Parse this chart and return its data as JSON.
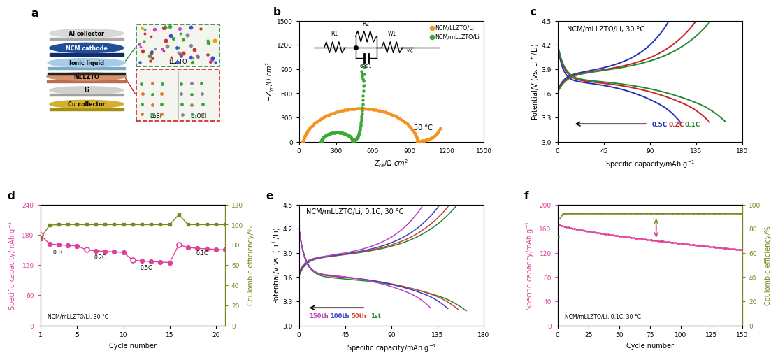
{
  "bg_color": "#ffffff",
  "panel_label_fontsize": 11,
  "axis_label_fontsize": 7,
  "tick_fontsize": 6.5,
  "title_fontsize": 7,
  "panel_b": {
    "xlim": [
      0,
      1500
    ],
    "ylim": [
      0,
      1500
    ],
    "xticks": [
      0,
      300,
      600,
      900,
      1200,
      1500
    ],
    "yticks": [
      0,
      300,
      600,
      900,
      1200,
      1500
    ],
    "orange_color": "#f5921e",
    "green_color": "#3aaa35",
    "label1": "NCM/LLZTO/Li",
    "label2": "NCM/mLLZTO/Li"
  },
  "panel_c": {
    "title": "NCM/mLLZTO/Li, 30 °C",
    "xlim": [
      0,
      180
    ],
    "ylim": [
      3.0,
      4.5
    ],
    "xticks": [
      0,
      45,
      90,
      135,
      180
    ],
    "yticks": [
      3.0,
      3.3,
      3.6,
      3.9,
      4.2,
      4.5
    ],
    "colors_05C": "#2233bb",
    "colors_02C": "#cc2222",
    "colors_01C": "#228833"
  },
  "panel_d": {
    "xlim": [
      1,
      21
    ],
    "ylim_left": [
      0,
      240
    ],
    "ylim_right": [
      0,
      120
    ],
    "xticks": [
      1,
      5,
      10,
      15,
      20
    ],
    "yticks_left": [
      0,
      60,
      120,
      180,
      240
    ],
    "yticks_right": [
      0,
      20,
      40,
      60,
      80,
      100,
      120
    ],
    "cap_color": "#e0409a",
    "ce_color": "#7a8820"
  },
  "panel_e": {
    "title": "NCM/mLLZTO/Li, 0.1C, 30 °C",
    "xlim": [
      0,
      180
    ],
    "ylim": [
      3.0,
      4.5
    ],
    "xticks": [
      0,
      45,
      90,
      135,
      180
    ],
    "yticks": [
      3.0,
      3.3,
      3.6,
      3.9,
      4.2,
      4.5
    ],
    "color_150": "#bb44bb",
    "color_100": "#3344cc",
    "color_50": "#cc4433",
    "color_1st": "#228833"
  },
  "panel_f": {
    "xlim": [
      0,
      150
    ],
    "ylim_left": [
      0,
      200
    ],
    "ylim_right": [
      0,
      100
    ],
    "xticks": [
      0,
      25,
      50,
      75,
      100,
      125,
      150
    ],
    "yticks_left": [
      0,
      40,
      80,
      120,
      160,
      200
    ],
    "yticks_right": [
      0,
      20,
      40,
      60,
      80,
      100
    ],
    "cap_color": "#e0409a",
    "ce_color": "#7a8820"
  }
}
